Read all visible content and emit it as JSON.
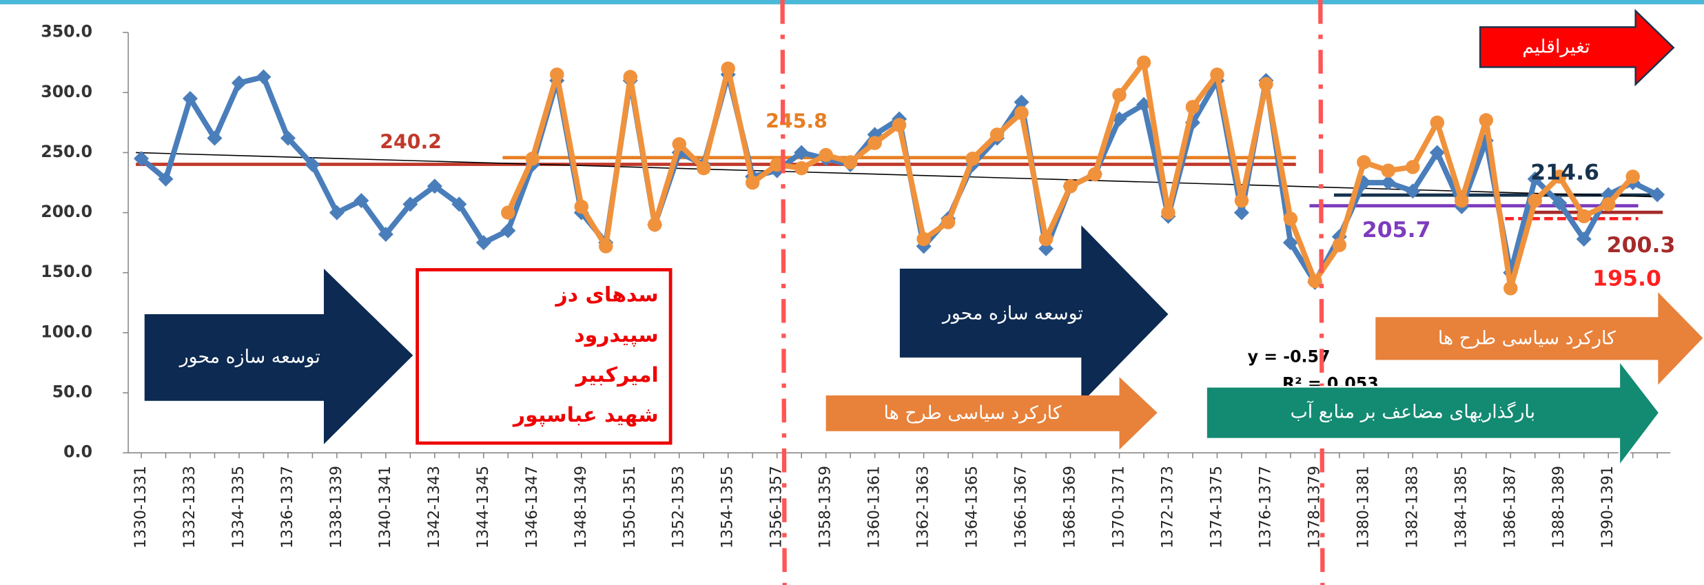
{
  "chart_data": {
    "type": "line",
    "categories": [
      "1330-1331",
      null,
      "1332-1333",
      null,
      "1334-1335",
      null,
      "1336-1337",
      null,
      "1338-1339",
      null,
      "1340-1341",
      null,
      "1342-1343",
      null,
      "1344-1345",
      null,
      "1346-1347",
      null,
      "1348-1349",
      null,
      "1350-1351",
      null,
      "1352-1353",
      null,
      "1354-1355",
      null,
      "1356-1357",
      null,
      "1358-1359",
      null,
      "1360-1361",
      null,
      "1362-1363",
      null,
      "1364-1365",
      null,
      "1366-1367",
      null,
      "1368-1369",
      null,
      "1370-1371",
      null,
      "1372-1373",
      null,
      "1374-1375",
      null,
      "1376-1377",
      null,
      "1378-1379",
      null,
      "1380-1381",
      null,
      "1382-1383",
      null,
      "1384-1385",
      null,
      "1386-1387",
      null,
      "1388-1389",
      null,
      "1390-1391",
      null,
      null
    ],
    "series": [
      {
        "color": "#4a7ebb",
        "marker": "diamond",
        "values": [
          245,
          228,
          295,
          262,
          308,
          313,
          262,
          240,
          200,
          210,
          182,
          207,
          222,
          207,
          175,
          185,
          240,
          310,
          200,
          175,
          310,
          190,
          250,
          240,
          315,
          230,
          235,
          250,
          245,
          240,
          265,
          278,
          172,
          195,
          240,
          262,
          292,
          170,
          222,
          232,
          278,
          290,
          197,
          275,
          310,
          200,
          310,
          175,
          142,
          180,
          225,
          225,
          218,
          250,
          205,
          260,
          150,
          228,
          208,
          178,
          215,
          225,
          215
        ]
      },
      {
        "color": "#f0923c",
        "marker": "circle",
        "values": [
          null,
          null,
          null,
          null,
          null,
          null,
          null,
          null,
          null,
          null,
          null,
          null,
          null,
          null,
          null,
          200,
          245,
          315,
          205,
          172,
          313,
          190,
          257,
          237,
          320,
          225,
          240,
          237,
          248,
          242,
          258,
          273,
          178,
          192,
          245,
          265,
          283,
          178,
          222,
          232,
          298,
          325,
          200,
          288,
          315,
          210,
          307,
          195,
          143,
          173,
          242,
          235,
          238,
          275,
          210,
          277,
          137,
          210,
          230,
          197,
          207,
          230,
          null
        ]
      }
    ],
    "reference_lines": [
      {
        "value": 240.2,
        "label": "240.2",
        "color": "#c0392b",
        "start": 0,
        "end": 47
      },
      {
        "value": 245.8,
        "label": "245.8",
        "color": "#e67e22",
        "start": 15,
        "end": 47
      },
      {
        "value": 205.7,
        "label": "205.7",
        "color": "#7d3cbd",
        "start": 48,
        "end": 61
      },
      {
        "value": 214.6,
        "label": "214.6",
        "color": "#17324d",
        "start": 49,
        "end": 62
      },
      {
        "value": 200.3,
        "label": "200.3",
        "color": "#a52a2a",
        "start": 57,
        "end": 62
      },
      {
        "value": 195.0,
        "label": "195.0",
        "color": "#ff2020",
        "start": 56,
        "end": 61,
        "dashed": true
      }
    ],
    "trend": {
      "values": [
        250,
        213
      ],
      "color": "#000"
    },
    "ylim": [
      0,
      350
    ],
    "yticks": [
      {
        "value": 0,
        "label": "0.0"
      },
      {
        "value": 50,
        "label": "50.0"
      },
      {
        "value": 100,
        "label": "100.0"
      },
      {
        "value": 150,
        "label": "150.0"
      },
      {
        "value": 200,
        "label": "200.0"
      },
      {
        "value": 250,
        "label": "250.0"
      },
      {
        "value": 300,
        "label": "300.0"
      },
      {
        "value": 350,
        "label": "350.0"
      }
    ],
    "annotations": [
      "تغیراقلیم",
      "توسعه سازه محور",
      "سدهای دز",
      "سپیدرود",
      "امیرکبیر",
      "شهید عباسپور",
      "توسعه سازه محور",
      "کارکرد سیاسی طرح ها",
      "بارگذاریهای مضاعف بر منابع آب",
      "کارکرد سیاسی طرح ها",
      "y = -0.57",
      "R² = 0.053"
    ]
  }
}
